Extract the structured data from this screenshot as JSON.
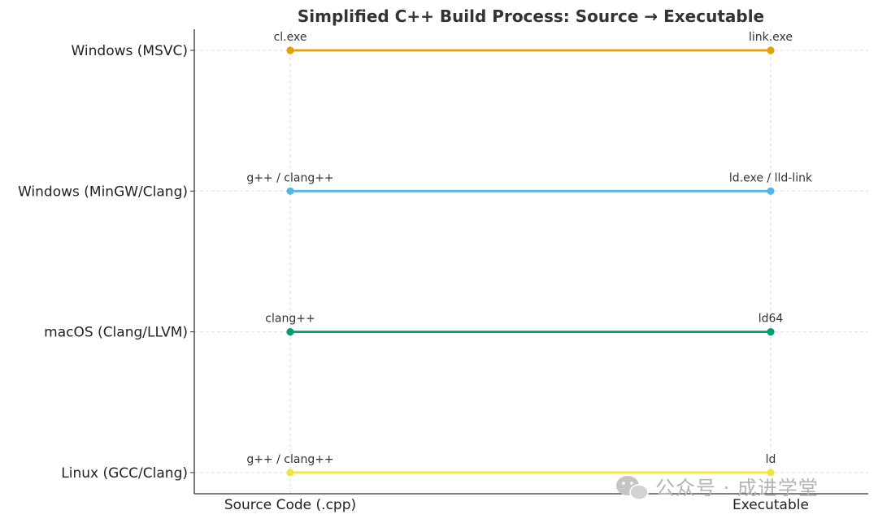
{
  "chart_data": {
    "type": "line",
    "title": "Simplified C++ Build Process: Source → Executable",
    "categories": [
      "Source Code (.cpp)",
      "Executable"
    ],
    "y_categories": [
      "Windows (MSVC)",
      "Windows (MinGW/Clang)",
      "macOS (Clang/LLVM)",
      "Linux (GCC/Clang)"
    ],
    "grid": true,
    "series": [
      {
        "name": "Windows (MSVC)",
        "color": "#E69F00",
        "labels": [
          "cl.exe",
          "link.exe"
        ]
      },
      {
        "name": "Windows (MinGW/Clang)",
        "color": "#56B4E9",
        "labels": [
          "g++ / clang++",
          "ld.exe / lld-link"
        ]
      },
      {
        "name": "macOS (Clang/LLVM)",
        "color": "#009E73",
        "labels": [
          "clang++",
          "ld64"
        ]
      },
      {
        "name": "Linux (GCC/Clang)",
        "color": "#F0E442",
        "labels": [
          "g++ / clang++",
          "ld"
        ]
      }
    ]
  },
  "watermark": {
    "icon": "wechat-icon",
    "text": "公众号 · 成进学堂"
  }
}
